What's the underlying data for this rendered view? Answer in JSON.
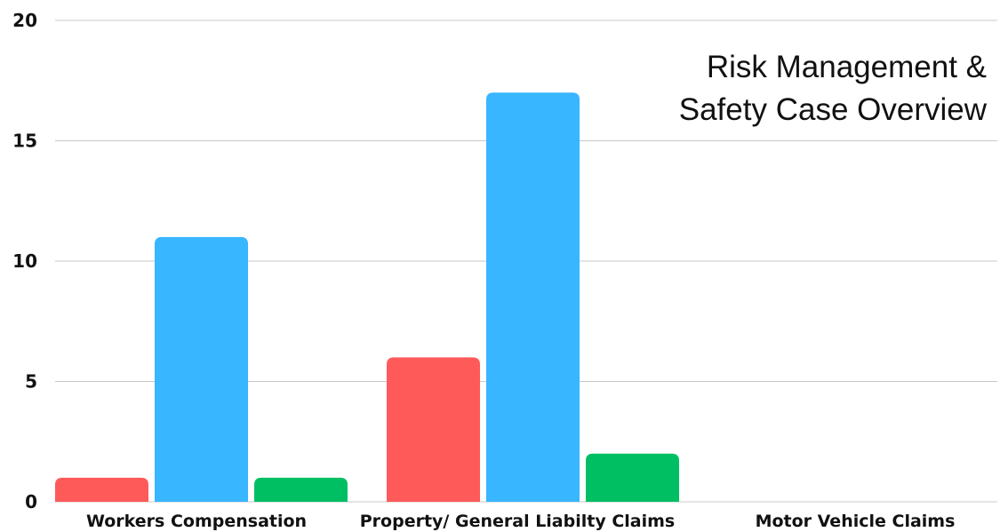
{
  "chart_data": {
    "type": "bar",
    "title": [
      "Risk Management &",
      "Safety Case Overview"
    ],
    "categories": [
      "Workers Compensation",
      "Property/ General Liabilty Claims",
      "Motor Vehicle Claims"
    ],
    "series": [
      {
        "color": "#ff5a5a",
        "values": [
          1,
          6,
          0
        ]
      },
      {
        "color": "#38b6ff",
        "values": [
          11,
          17,
          0
        ]
      },
      {
        "color": "#00bf63",
        "values": [
          1,
          2,
          0
        ]
      }
    ],
    "yticks": [
      "0",
      "5",
      "10",
      "15",
      "20"
    ],
    "ylim": [
      0,
      20
    ],
    "grid": true,
    "xlabel": "",
    "ylabel": ""
  }
}
